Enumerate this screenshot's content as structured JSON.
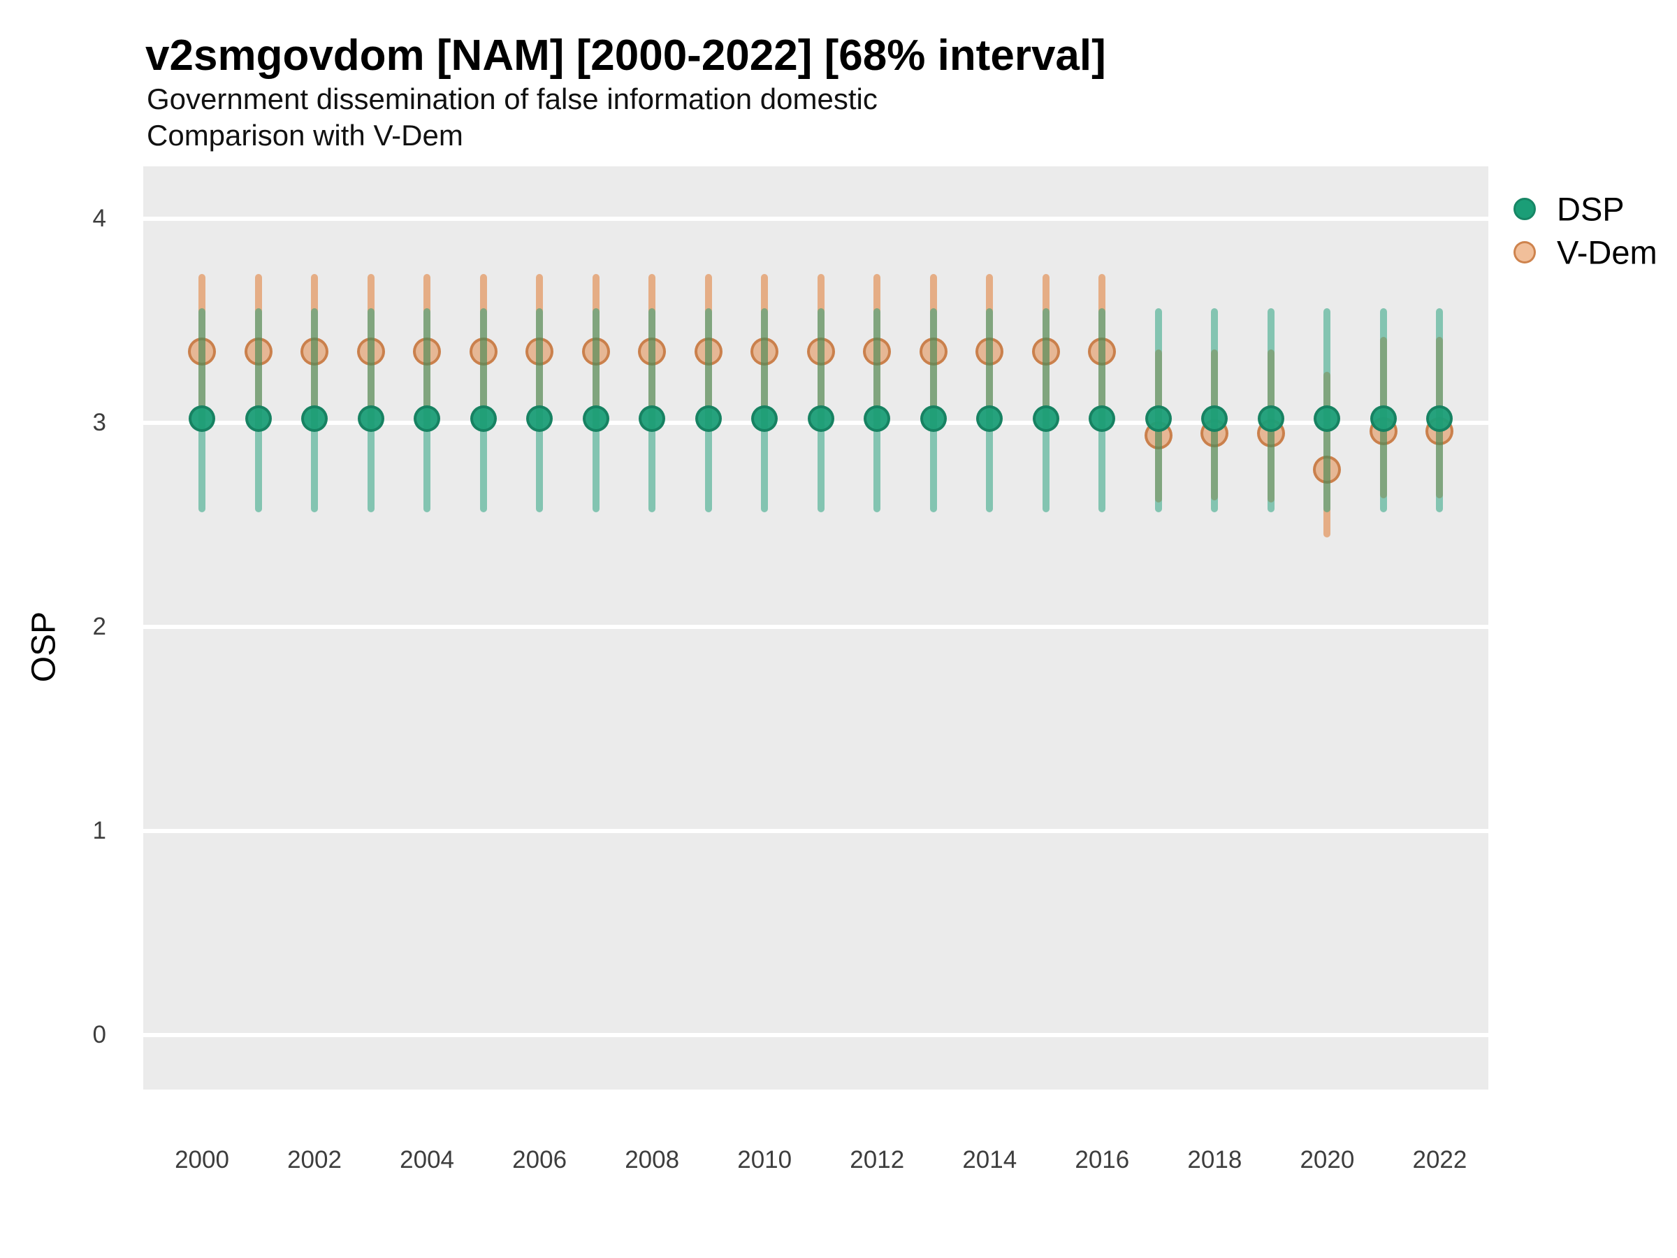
{
  "title": "v2smgovdom [NAM] [2000-2022] [68% interval]",
  "subtitle_line1": "Government dissemination of false information domestic",
  "subtitle_line2": "Comparison with V-Dem",
  "y_axis": {
    "title": "OSP",
    "ticks": [
      4,
      3,
      2,
      1,
      0
    ]
  },
  "x_axis": {
    "ticks": [
      2000,
      2002,
      2004,
      2006,
      2008,
      2010,
      2012,
      2014,
      2016,
      2018,
      2020,
      2022
    ]
  },
  "legend": {
    "items": [
      {
        "label": "DSP"
      },
      {
        "label": "V-Dem"
      }
    ]
  },
  "colors": {
    "dsp": "#1b9e77",
    "vdem": "#e07020",
    "panel_bg": "#ebebeb",
    "grid": "#ffffff"
  },
  "chart_data": {
    "type": "pointrange",
    "title": "v2smgovdom [NAM] [2000-2022] [68% interval]",
    "xlabel": "",
    "ylabel": "OSP",
    "ylim": [
      0,
      4
    ],
    "interval": "68%",
    "x": [
      2000,
      2001,
      2002,
      2003,
      2004,
      2005,
      2006,
      2007,
      2008,
      2009,
      2010,
      2011,
      2012,
      2013,
      2014,
      2015,
      2016,
      2017,
      2018,
      2019,
      2020,
      2021,
      2022
    ],
    "series": [
      {
        "name": "DSP",
        "points": [
          3.02,
          3.02,
          3.02,
          3.02,
          3.02,
          3.02,
          3.02,
          3.02,
          3.02,
          3.02,
          3.02,
          3.02,
          3.02,
          3.02,
          3.02,
          3.02,
          3.02,
          3.02,
          3.02,
          3.02,
          3.02,
          3.02,
          3.02
        ],
        "lower": [
          2.56,
          2.56,
          2.56,
          2.56,
          2.56,
          2.56,
          2.56,
          2.56,
          2.56,
          2.56,
          2.56,
          2.56,
          2.56,
          2.56,
          2.56,
          2.56,
          2.56,
          2.56,
          2.56,
          2.56,
          2.56,
          2.56,
          2.56
        ],
        "upper": [
          3.56,
          3.56,
          3.56,
          3.56,
          3.56,
          3.56,
          3.56,
          3.56,
          3.56,
          3.56,
          3.56,
          3.56,
          3.56,
          3.56,
          3.56,
          3.56,
          3.56,
          3.56,
          3.56,
          3.56,
          3.56,
          3.56,
          3.56
        ]
      },
      {
        "name": "V-Dem",
        "points": [
          3.35,
          3.35,
          3.35,
          3.35,
          3.35,
          3.35,
          3.35,
          3.35,
          3.35,
          3.35,
          3.35,
          3.35,
          3.35,
          3.35,
          3.35,
          3.35,
          3.35,
          2.94,
          2.95,
          2.95,
          2.77,
          2.96,
          2.96
        ],
        "lower": [
          2.97,
          2.97,
          2.97,
          2.97,
          2.97,
          2.97,
          2.97,
          2.97,
          2.97,
          2.97,
          2.97,
          2.97,
          2.97,
          2.97,
          2.97,
          2.97,
          2.97,
          2.61,
          2.62,
          2.61,
          2.44,
          2.63,
          2.63
        ],
        "upper": [
          3.73,
          3.73,
          3.73,
          3.73,
          3.73,
          3.73,
          3.73,
          3.73,
          3.73,
          3.73,
          3.73,
          3.73,
          3.73,
          3.73,
          3.73,
          3.73,
          3.73,
          3.36,
          3.36,
          3.36,
          3.25,
          3.42,
          3.42
        ]
      }
    ],
    "legend_position": "right-top",
    "grid": "horizontal-major-only"
  }
}
